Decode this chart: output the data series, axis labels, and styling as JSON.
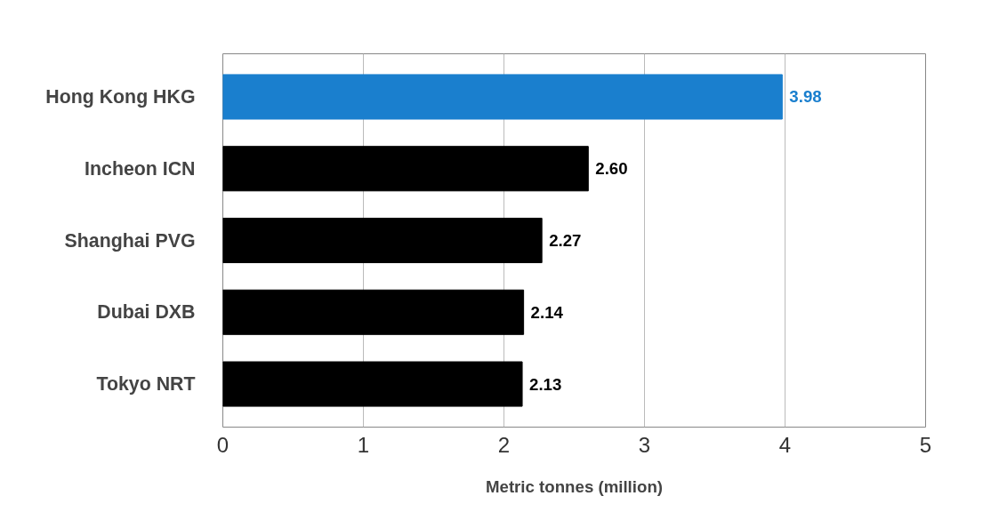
{
  "chart_data": {
    "type": "bar",
    "orientation": "horizontal",
    "categories": [
      "Hong Kong HKG",
      "Incheon ICN",
      "Shanghai PVG",
      "Dubai DXB",
      "Tokyo NRT"
    ],
    "values": [
      3.98,
      2.6,
      2.27,
      2.14,
      2.13
    ],
    "colors": [
      "#1a7fce",
      "#000000",
      "#000000",
      "#000000",
      "#000000"
    ],
    "xlabel": "Metric tonnes (million)",
    "xlim": [
      0,
      5
    ],
    "xticks": [
      0,
      1,
      2,
      3,
      4,
      5
    ],
    "grid": "x",
    "value_labels": [
      "3.98",
      "2.60",
      "2.27",
      "2.14",
      "2.13"
    ]
  }
}
